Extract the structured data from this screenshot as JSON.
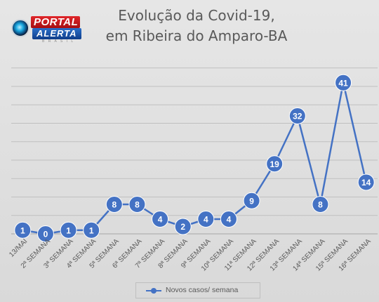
{
  "logo": {
    "top_text": "PORTAL",
    "bottom_text": "ALERTA",
    "sub_text": "B R A S I L"
  },
  "chart_data": {
    "type": "line",
    "title_lines": [
      "Evolução da Covid-19,",
      "em Ribeira do Amparo-BA"
    ],
    "categories": [
      "13/MAI",
      "2ª SEMANA",
      "3ª SEMANA",
      "4ª SEMANA",
      "5ª SEMANA",
      "6ª SEMANA",
      "7ª SEMANA",
      "8ª SEMANA",
      "9ª SEMANA",
      "10ª SEMANA",
      "11ª SEMANA",
      "12ª SEMANA",
      "13ª SEMANA",
      "14ª SEMANA",
      "15ª SEMANA",
      "16ª SEMANA"
    ],
    "series": [
      {
        "name": "Novos casos/ semana",
        "values": [
          1,
          0,
          1,
          1,
          8,
          8,
          4,
          2,
          4,
          4,
          9,
          19,
          32,
          8,
          41,
          14
        ]
      }
    ],
    "ylim": [
      0,
      48
    ],
    "grid": true,
    "data_labels": true,
    "legend_position": "bottom",
    "colors": {
      "line": "#4472c4",
      "grid": "#bfbfbf",
      "label_text": "#ffffff",
      "axis_text": "#595959"
    }
  }
}
